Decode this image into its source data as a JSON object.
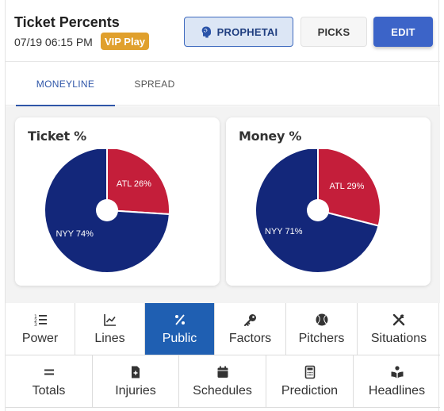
{
  "header": {
    "title": "Ticket Percents",
    "datetime": "07/19 06:15 PM",
    "badge": "VIP Play",
    "buttons": {
      "prophet": "PROPHETAI",
      "picks": "PICKS",
      "edit": "EDIT"
    }
  },
  "tabs": [
    {
      "label": "MONEYLINE",
      "active": true
    },
    {
      "label": "SPREAD",
      "active": false
    }
  ],
  "cards": [
    {
      "title": "Ticket %"
    },
    {
      "title": "Money %"
    }
  ],
  "chart_data": [
    {
      "type": "pie",
      "title": "Ticket %",
      "slices": [
        {
          "label": "ATL 26%",
          "team": "ATL",
          "value": 26,
          "color": "#c41e3a"
        },
        {
          "label": "NYY 74%",
          "team": "NYY",
          "value": 74,
          "color": "#13277a"
        }
      ]
    },
    {
      "type": "pie",
      "title": "Money %",
      "slices": [
        {
          "label": "ATL 29%",
          "team": "ATL",
          "value": 29,
          "color": "#c41e3a"
        },
        {
          "label": "NYY 71%",
          "team": "NYY",
          "value": 71,
          "color": "#13277a"
        }
      ]
    }
  ],
  "nav": {
    "row1": [
      {
        "label": "Power",
        "icon": "list-numbered-icon",
        "active": false
      },
      {
        "label": "Lines",
        "icon": "line-chart-icon",
        "active": false
      },
      {
        "label": "Public",
        "icon": "percent-icon",
        "active": true
      },
      {
        "label": "Factors",
        "icon": "key-icon",
        "active": false
      },
      {
        "label": "Pitchers",
        "icon": "baseball-icon",
        "active": false
      },
      {
        "label": "Situations",
        "icon": "tools-icon",
        "active": false
      }
    ],
    "row2": [
      {
        "label": "Totals",
        "icon": "equals-icon",
        "active": false
      },
      {
        "label": "Injuries",
        "icon": "medical-file-icon",
        "active": false
      },
      {
        "label": "Schedules",
        "icon": "calendar-icon",
        "active": false
      },
      {
        "label": "Prediction",
        "icon": "calculator-icon",
        "active": false
      },
      {
        "label": "Headlines",
        "icon": "reader-icon",
        "active": false
      }
    ]
  },
  "colors": {
    "accent": "#3c64c8",
    "active_nav": "#1f5fb2",
    "badge": "#e0a02d",
    "atl": "#c41e3a",
    "nyy": "#13277a"
  }
}
